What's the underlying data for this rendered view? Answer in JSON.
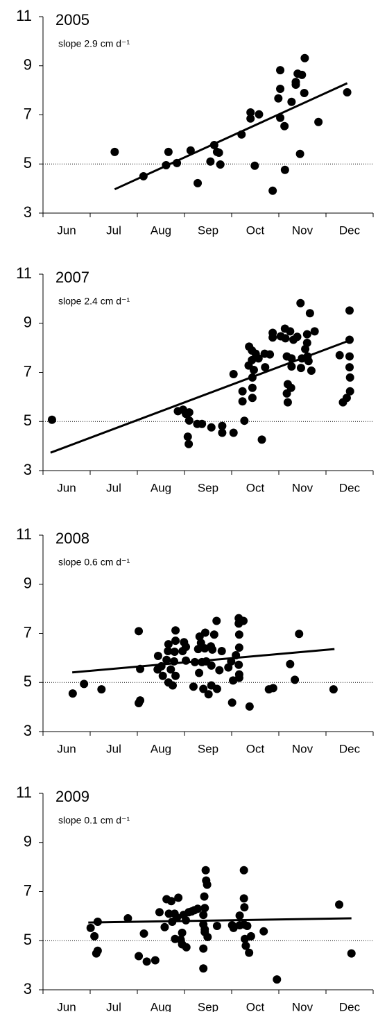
{
  "chart_data": [
    {
      "type": "scatter",
      "title": "2005",
      "annotation": "slope 2.9 cm d⁻¹",
      "color": "#000000",
      "categories": [
        "Jun",
        "Jul",
        "Aug",
        "Sep",
        "Oct",
        "Nov",
        "Dec"
      ],
      "ylim": [
        3,
        11
      ],
      "yticks": [
        3,
        5,
        7,
        9,
        11
      ],
      "hline": 5,
      "x": [
        1.52,
        2.13,
        2.61,
        2.66,
        2.84,
        3.13,
        3.28,
        3.55,
        3.63,
        3.69,
        3.73,
        3.76,
        4.21,
        4.4,
        4.4,
        4.58,
        4.49,
        4.87,
        5.03,
        5.03,
        4.99,
        5.03,
        5.12,
        5.13,
        5.27,
        5.36,
        5.36,
        5.4,
        5.45,
        5.49,
        5.55,
        5.54,
        5.84,
        6.45
      ],
      "values": [
        5.49,
        4.5,
        4.95,
        5.49,
        5.04,
        5.55,
        4.22,
        5.1,
        5.77,
        5.49,
        5.46,
        4.98,
        6.2,
        7.1,
        6.85,
        7.02,
        4.93,
        3.91,
        8.82,
        8.06,
        7.67,
        6.88,
        6.54,
        4.76,
        7.53,
        8.34,
        8.23,
        8.68,
        5.41,
        8.63,
        9.31,
        7.89,
        6.71,
        7.92
      ],
      "trend": {
        "x": [
          1.52,
          6.45
        ],
        "values": [
          3.97,
          8.29
        ]
      }
    },
    {
      "type": "scatter",
      "title": "2007",
      "annotation": "slope 2.4 cm d⁻¹",
      "color": "#000000",
      "categories": [
        "Jun",
        "Jul",
        "Aug",
        "Sep",
        "Oct",
        "Nov",
        "Dec"
      ],
      "ylim": [
        3,
        11
      ],
      "yticks": [
        3,
        5,
        7,
        9,
        11
      ],
      "hline": 5,
      "x": [
        0.19,
        2.86,
        2.97,
        3.03,
        3.1,
        3.1,
        3.07,
        3.09,
        3.27,
        3.37,
        3.57,
        3.8,
        3.8,
        4.04,
        4.04,
        4.23,
        4.23,
        4.27,
        4.36,
        4.37,
        4.43,
        4.43,
        4.44,
        4.44,
        4.44,
        4.47,
        4.51,
        4.57,
        4.64,
        4.7,
        4.71,
        4.81,
        4.87,
        4.87,
        5.04,
        5.13,
        5.14,
        5.17,
        5.19,
        5.17,
        5.19,
        5.24,
        5.27,
        5.26,
        5.27,
        5.31,
        5.39,
        5.46,
        5.47,
        5.49,
        5.56,
        5.6,
        5.6,
        5.61,
        5.63,
        5.69,
        5.76,
        5.66,
        6.29,
        6.36,
        6.44,
        6.5,
        6.5,
        6.5,
        6.5,
        6.51,
        6.51
      ],
      "values": [
        5.07,
        5.42,
        5.48,
        5.31,
        5.37,
        5.04,
        4.38,
        4.08,
        4.9,
        4.9,
        4.76,
        4.82,
        4.54,
        6.93,
        4.54,
        5.82,
        6.23,
        5.03,
        7.28,
        8.05,
        7.89,
        7.5,
        6.79,
        6.37,
        5.96,
        7.1,
        7.76,
        7.57,
        4.26,
        7.76,
        7.21,
        7.73,
        8.61,
        8.42,
        8.47,
        8.78,
        8.39,
        7.65,
        6.52,
        6.14,
        5.78,
        8.67,
        7.57,
        6.37,
        7.24,
        8.33,
        8.45,
        9.82,
        7.18,
        7.57,
        7.95,
        8.55,
        8.2,
        7.65,
        7.46,
        7.07,
        8.67,
        9.41,
        7.7,
        5.78,
        5.96,
        9.52,
        8.33,
        7.65,
        7.21,
        6.79,
        6.23
      ],
      "trend": {
        "x": [
          0.16,
          6.5
        ],
        "values": [
          3.73,
          8.3
        ]
      }
    },
    {
      "type": "scatter",
      "title": "2008",
      "annotation": "slope 0.6 cm d⁻¹",
      "color": "#000000",
      "categories": [
        "Jun",
        "Jul",
        "Aug",
        "Sep",
        "Oct",
        "Nov",
        "Dec"
      ],
      "ylim": [
        3,
        11
      ],
      "yticks": [
        3,
        5,
        7,
        9,
        11
      ],
      "hline": 5,
      "x": [
        0.63,
        0.87,
        1.24,
        2.03,
        2.03,
        2.06,
        2.06,
        2.44,
        2.43,
        2.51,
        2.54,
        2.62,
        2.65,
        2.66,
        2.66,
        2.71,
        2.75,
        2.78,
        2.79,
        2.81,
        2.81,
        2.81,
        2.96,
        2.99,
        3.03,
        3.03,
        3.19,
        3.22,
        3.29,
        3.31,
        3.32,
        3.35,
        3.37,
        3.4,
        3.43,
        3.44,
        3.46,
        3.51,
        3.56,
        3.57,
        3.59,
        3.57,
        3.63,
        3.68,
        3.69,
        3.74,
        3.79,
        3.93,
        3.99,
        4.01,
        4.03,
        4.09,
        4.15,
        4.15,
        4.15,
        4.16,
        4.16,
        4.16,
        4.16,
        4.25,
        4.38,
        4.79,
        4.88,
        5.24,
        5.34,
        5.43,
        6.16
      ],
      "values": [
        4.55,
        4.94,
        4.72,
        7.09,
        4.16,
        4.27,
        5.55,
        6.08,
        5.53,
        5.66,
        5.27,
        5.92,
        6.28,
        6.56,
        5.0,
        5.53,
        4.88,
        5.86,
        6.25,
        7.12,
        6.7,
        5.27,
        6.28,
        6.64,
        6.45,
        5.89,
        4.83,
        5.83,
        6.36,
        5.39,
        6.87,
        6.61,
        5.83,
        4.74,
        6.39,
        7.03,
        5.86,
        4.52,
        6.47,
        5.69,
        6.34,
        4.88,
        6.95,
        7.51,
        4.74,
        5.5,
        6.28,
        5.61,
        5.86,
        4.18,
        5.08,
        6.11,
        5.72,
        7.62,
        7.4,
        6.95,
        6.42,
        5.33,
        5.19,
        7.51,
        4.02,
        4.72,
        4.77,
        5.75,
        5.11,
        6.98,
        4.72
      ],
      "trend": {
        "x": [
          0.62,
          6.18
        ],
        "values": [
          5.41,
          6.36
        ]
      }
    },
    {
      "type": "scatter",
      "title": "2009",
      "annotation": "slope 0.1 cm d⁻¹",
      "color": "#000000",
      "categories": [
        "Jun",
        "Jul",
        "Aug",
        "Sep",
        "Oct",
        "Nov",
        "Dec"
      ],
      "ylim": [
        3,
        11
      ],
      "yticks": [
        3,
        5,
        7,
        9,
        11
      ],
      "hline": 5,
      "x": [
        1.01,
        1.09,
        1.16,
        1.13,
        1.16,
        1.8,
        2.03,
        2.14,
        2.2,
        2.38,
        2.47,
        2.58,
        2.62,
        2.67,
        2.72,
        2.74,
        2.79,
        2.8,
        2.84,
        2.87,
        2.92,
        2.95,
        2.95,
        2.98,
        3.03,
        3.04,
        3.09,
        3.15,
        3.21,
        3.28,
        3.4,
        3.43,
        3.43,
        3.45,
        3.46,
        3.48,
        3.42,
        3.43,
        3.4,
        3.4,
        3.4,
        3.49,
        3.69,
        4.01,
        4.04,
        4.17,
        4.17,
        4.26,
        4.26,
        4.26,
        4.27,
        4.28,
        4.3,
        4.33,
        4.37,
        4.41,
        4.68,
        4.96,
        6.28,
        6.54
      ],
      "values": [
        5.52,
        5.18,
        5.77,
        4.48,
        4.59,
        5.91,
        4.37,
        5.29,
        4.15,
        4.2,
        6.16,
        5.55,
        6.69,
        6.1,
        6.61,
        5.77,
        6.1,
        5.07,
        5.94,
        6.75,
        5.04,
        4.85,
        5.32,
        6.05,
        5.83,
        4.73,
        6.16,
        6.19,
        6.24,
        6.3,
        6.05,
        5.46,
        5.35,
        7.87,
        7.45,
        7.28,
        6.8,
        6.33,
        5.66,
        4.68,
        3.87,
        5.15,
        5.6,
        5.63,
        5.52,
        6.02,
        5.63,
        7.87,
        6.72,
        5.66,
        6.36,
        5.07,
        4.79,
        5.6,
        4.51,
        5.18,
        5.38,
        3.42,
        6.47,
        4.48
      ],
      "trend": {
        "x": [
          0.96,
          6.54
        ],
        "values": [
          5.74,
          5.91
        ]
      }
    }
  ]
}
